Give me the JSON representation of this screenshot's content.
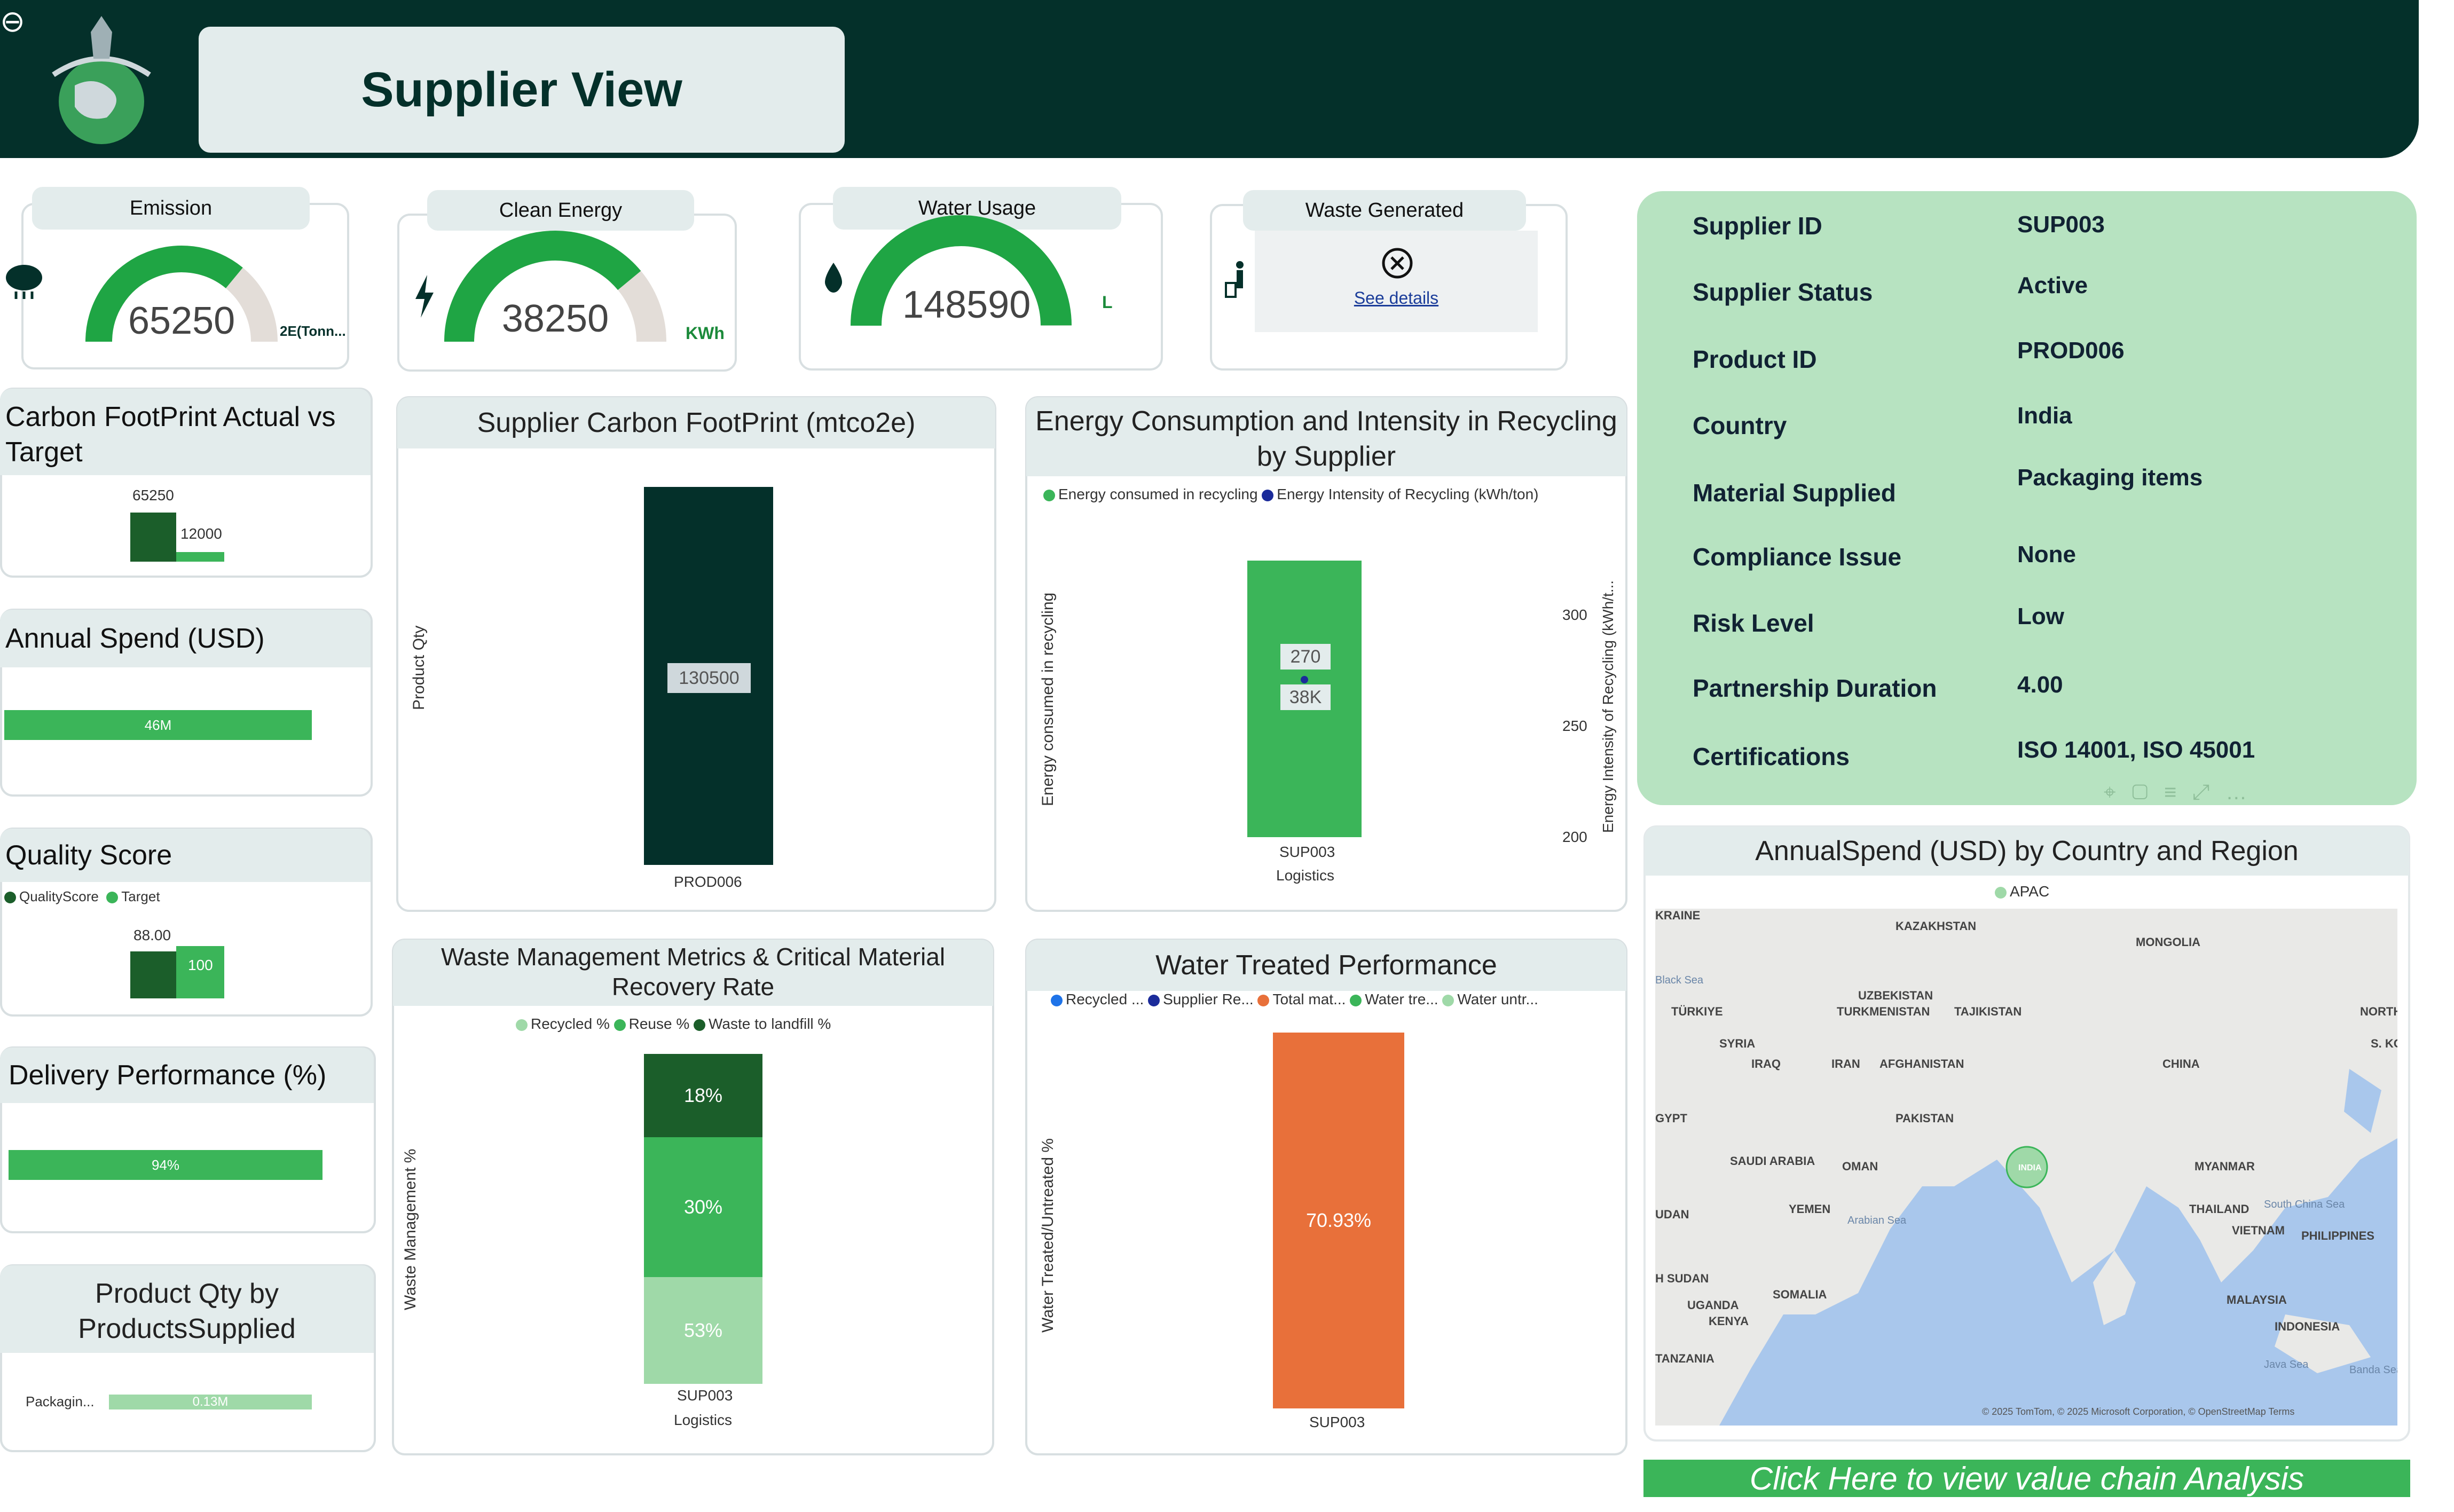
{
  "header": {
    "title": "Supplier View",
    "back_icon": "arrow-left-circle-icon",
    "logo_icon": "eco-globe-icon"
  },
  "kpis": {
    "emission": {
      "label": "Emission",
      "value": "65250",
      "unit": "2E(Tonn...",
      "fill": 0.72,
      "icon": "cloud-icon"
    },
    "clean_energy": {
      "label": "Clean Energy",
      "value": "38250",
      "unit": "KWh",
      "fill": 0.78,
      "icon": "lightning-icon"
    },
    "water_usage": {
      "label": "Water Usage",
      "value": "148590",
      "unit": "L",
      "fill": 1.0,
      "icon": "droplet-icon"
    },
    "waste_generated": {
      "label": "Waste Generated",
      "link": "See details",
      "icon": "recycle-bin-icon"
    }
  },
  "carbon_target": {
    "title": "Carbon FootPrint Actual vs Target",
    "actual": "65250",
    "target": "12000"
  },
  "annual_spend": {
    "title": "Annual Spend (USD)",
    "value": "46M"
  },
  "quality_score": {
    "title": "Quality Score",
    "legend": [
      "QualityScore",
      "Target"
    ],
    "score": "88.00",
    "target": "100"
  },
  "delivery": {
    "title": "Delivery Performance (%)",
    "value": "94%"
  },
  "product_qty": {
    "title": "Product Qty by ProductsSupplied",
    "category": "Packagin...",
    "value": "0.13M"
  },
  "supplier_carbon": {
    "title": "Supplier Carbon FootPrint (mtco2e)",
    "ylabel": "Product Qty",
    "chart_data": {
      "type": "bar",
      "categories": [
        "PROD006"
      ],
      "values": [
        130500
      ],
      "title": "Supplier Carbon FootPrint (mtco2e)",
      "ylabel": "Product Qty",
      "data_labels": [
        "130500"
      ]
    }
  },
  "energy": {
    "title": "Energy Consumption and Intensity in Recycling by Supplier",
    "legend": [
      "Energy consumed in recycling",
      "Energy Intensity of Recycling (kWh/ton)"
    ],
    "ylabel": "Energy consumed in recycling",
    "y2label": "Energy Intensity of Recycling (kWh/t...",
    "y2ticks": [
      "300",
      "250",
      "200"
    ],
    "category": "SUP003",
    "subcategory": "Logistics",
    "label_intensity": "270",
    "label_consumed": "38K",
    "chart_data": {
      "type": "bar",
      "categories": [
        "SUP003"
      ],
      "series": [
        {
          "name": "Energy consumed in recycling",
          "values": [
            38000
          ]
        },
        {
          "name": "Energy Intensity of Recycling (kWh/ton)",
          "values": [
            270
          ]
        }
      ],
      "y2lim": [
        200,
        300
      ]
    }
  },
  "waste": {
    "title": "Waste Management Metrics & Critical Material Recovery Rate",
    "legend": [
      "Recycled %",
      "Reuse %",
      "Waste to landfill %"
    ],
    "ylabel": "Waste Management %",
    "category": "SUP003",
    "subcategory": "Logistics",
    "labels": [
      "18%",
      "30%",
      "53%"
    ],
    "chart_data": {
      "type": "bar",
      "categories": [
        "SUP003"
      ],
      "series": [
        {
          "name": "Waste to landfill %",
          "values": [
            18
          ]
        },
        {
          "name": "Reuse %",
          "values": [
            30
          ]
        },
        {
          "name": "Recycled %",
          "values": [
            53
          ]
        }
      ]
    }
  },
  "water": {
    "title": "Water Treated Performance",
    "legend": [
      "Recycled ...",
      "Supplier Re...",
      "Total mat...",
      "Water tre...",
      "Water untr..."
    ],
    "legend_colors": [
      "#1e73e8",
      "#1b2b9a",
      "#e8703a",
      "#3bb559",
      "#9fd9a8"
    ],
    "ylabel": "Water Treated/Untreated %",
    "category": "SUP003",
    "label": "70.93%",
    "chart_data": {
      "type": "bar",
      "categories": [
        "SUP003"
      ],
      "values": [
        70.93
      ]
    }
  },
  "supplier_info": {
    "rows": [
      {
        "label": "Supplier ID",
        "value": "SUP003"
      },
      {
        "label": "Supplier Status",
        "value": "Active"
      },
      {
        "label": "Product ID",
        "value": "PROD006"
      },
      {
        "label": "Country",
        "value": "India"
      },
      {
        "label": "Material Supplied",
        "value": "Packaging items"
      },
      {
        "label": "Compliance Issue",
        "value": "None"
      },
      {
        "label": "Risk Level",
        "value": "Low"
      },
      {
        "label": "Partnership Duration",
        "value": "4.00"
      },
      {
        "label": "Certifications",
        "value": "ISO 14001, ISO 45001"
      }
    ]
  },
  "map": {
    "title": "AnnualSpend (USD) by Country and Region",
    "legend": "APAC",
    "labels": [
      "KRAINE",
      "KAZAKHSTAN",
      "MONGOLIA",
      "Black Sea",
      "UZBEKISTAN",
      "TÜRKIYE",
      "TURKMENISTAN",
      "TAJIKISTAN",
      "NORTH KO",
      "S. KORE",
      "SYRIA",
      "IRAQ",
      "IRAN",
      "AFGHANISTAN",
      "CHINA",
      "GYPT",
      "PAKISTAN",
      "SAUDI ARABIA",
      "OMAN",
      "INDIA",
      "MYANMAR",
      "UDAN",
      "YEMEN",
      "THAILAND",
      "South China Sea",
      "Arabian Sea",
      "VIETNAM",
      "PHILIPPINES",
      "H SUDAN",
      "SOMALIA",
      "MALAYSIA",
      "UGANDA",
      "KENYA",
      "INDONESIA",
      "TANZANIA",
      "Java Sea",
      "Banda Sea"
    ],
    "attribution": "© 2025 TomTom, © 2025 Microsoft Corporation, © OpenStreetMap Terms"
  },
  "cta": "Click Here to view value chain Analysis"
}
